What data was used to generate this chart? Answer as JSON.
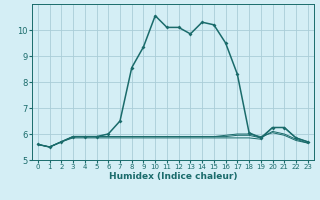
{
  "xlabel": "Humidex (Indice chaleur)",
  "bg_color": "#d4eef5",
  "grid_color": "#aacdd8",
  "line_color": "#1a6b6b",
  "xlim": [
    -0.5,
    23.5
  ],
  "ylim": [
    5.0,
    11.0
  ],
  "xticks": [
    0,
    1,
    2,
    3,
    4,
    5,
    6,
    7,
    8,
    9,
    10,
    11,
    12,
    13,
    14,
    15,
    16,
    17,
    18,
    19,
    20,
    21,
    22,
    23
  ],
  "yticks": [
    5,
    6,
    7,
    8,
    9,
    10
  ],
  "main_x": [
    0,
    1,
    2,
    3,
    4,
    5,
    6,
    7,
    8,
    9,
    10,
    11,
    12,
    13,
    14,
    15,
    16,
    17,
    18,
    19,
    20,
    21,
    22,
    23
  ],
  "main_y": [
    5.6,
    5.5,
    5.7,
    5.9,
    5.9,
    5.9,
    6.0,
    6.5,
    8.55,
    9.35,
    10.55,
    10.1,
    10.1,
    9.85,
    10.3,
    10.2,
    9.5,
    8.3,
    6.05,
    5.85,
    6.25,
    6.25,
    5.85,
    5.7
  ],
  "flat1_y": [
    5.6,
    5.5,
    5.7,
    5.85,
    5.85,
    5.85,
    5.85,
    5.85,
    5.85,
    5.85,
    5.85,
    5.85,
    5.85,
    5.85,
    5.85,
    5.85,
    5.85,
    5.85,
    5.85,
    5.8,
    6.25,
    6.25,
    5.85,
    5.7
  ],
  "flat2_y": [
    5.6,
    5.5,
    5.7,
    5.9,
    5.9,
    5.9,
    5.9,
    5.9,
    5.9,
    5.9,
    5.9,
    5.9,
    5.9,
    5.9,
    5.9,
    5.9,
    5.9,
    5.95,
    5.95,
    5.85,
    6.1,
    6.0,
    5.8,
    5.65
  ],
  "flat3_y": [
    5.6,
    5.5,
    5.7,
    5.9,
    5.9,
    5.9,
    5.9,
    5.9,
    5.9,
    5.9,
    5.9,
    5.9,
    5.9,
    5.9,
    5.9,
    5.9,
    5.95,
    6.0,
    6.0,
    5.9,
    6.05,
    5.95,
    5.75,
    5.65
  ]
}
